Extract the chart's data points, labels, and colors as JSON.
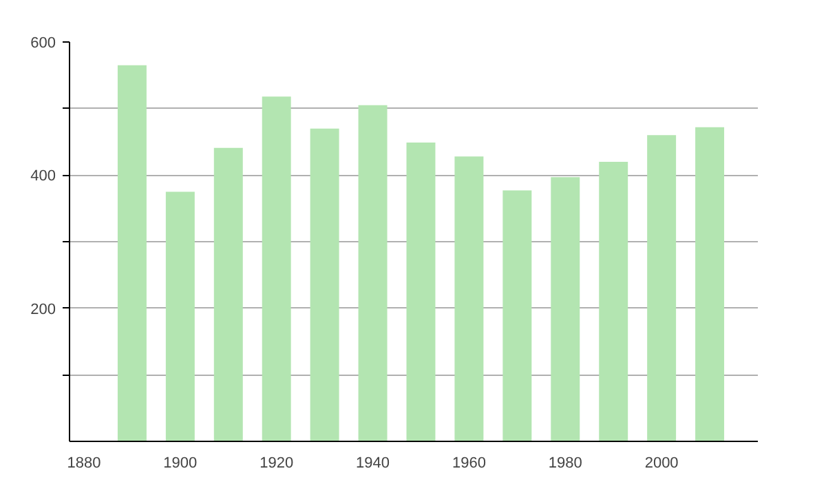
{
  "chart_data": {
    "type": "bar",
    "x": [
      1890,
      1900,
      1910,
      1920,
      1930,
      1940,
      1950,
      1960,
      1970,
      1980,
      1990,
      2000,
      2010
    ],
    "values": [
      565,
      375,
      441,
      518,
      470,
      505,
      449,
      428,
      377,
      397,
      420,
      460,
      472
    ],
    "color": "#b3e5b1",
    "xlim": [
      1877,
      2020
    ],
    "xticks": [
      1880,
      1900,
      1920,
      1940,
      1960,
      1980,
      2000
    ],
    "ylim": [
      0,
      600
    ],
    "yticks": [
      {
        "value": 100,
        "label": null
      },
      200,
      {
        "value": 300,
        "label": null
      },
      400,
      {
        "value": 500,
        "label": null
      },
      600
    ],
    "grid": "y"
  }
}
